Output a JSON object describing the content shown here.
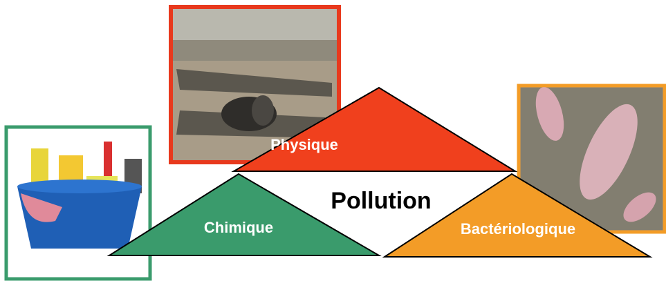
{
  "nodes": [
    {
      "label": "Physique"
    },
    {
      "label": "Chimique"
    },
    {
      "label": "Bactériologique"
    }
  ],
  "center": {
    "label": "Pollution"
  }
}
